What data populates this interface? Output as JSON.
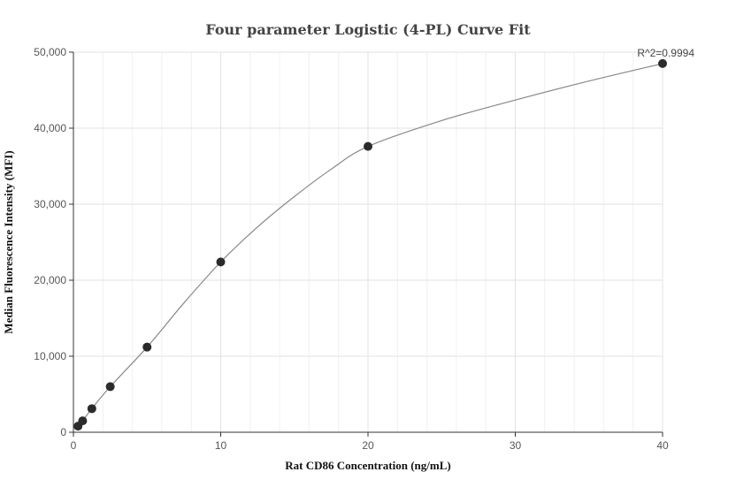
{
  "chart_data": {
    "type": "scatter",
    "title": "Four parameter Logistic (4-PL) Curve Fit",
    "xlabel": "Rat CD86 Concentration (ng/mL)",
    "ylabel": "Median Fluorescence Intensity (MFI)",
    "xlim": [
      0,
      40
    ],
    "ylim": [
      0,
      50000
    ],
    "x_ticks": [
      0,
      10,
      20,
      30,
      40
    ],
    "x_tick_labels": [
      "0",
      "10",
      "20",
      "30",
      "40"
    ],
    "y_ticks": [
      0,
      10000,
      20000,
      30000,
      40000,
      50000
    ],
    "y_tick_labels": [
      "0",
      "10,000",
      "20,000",
      "30,000",
      "40,000",
      "50,000"
    ],
    "grid": true,
    "annotation": "R^2=0.9994",
    "colors": {
      "points": "#2b2b2b",
      "curve": "#888888",
      "grid": "#e6e6ef",
      "axis": "#333333"
    },
    "series": [
      {
        "type": "scatter",
        "x": [
          0.3125,
          0.625,
          1.25,
          2.5,
          5,
          10,
          20,
          40
        ],
        "y": [
          800,
          1500,
          3100,
          6000,
          11200,
          22400,
          37600,
          48500
        ]
      },
      {
        "type": "line",
        "x": [
          0.3125,
          0.625,
          1.25,
          2.5,
          5,
          7.5,
          10,
          12.5,
          15,
          17.5,
          20,
          25,
          30,
          35,
          40
        ],
        "y": [
          800,
          1500,
          3100,
          6000,
          11200,
          17000,
          22400,
          27000,
          31000,
          34600,
          37600,
          41000,
          43700,
          46200,
          48500
        ]
      }
    ]
  }
}
